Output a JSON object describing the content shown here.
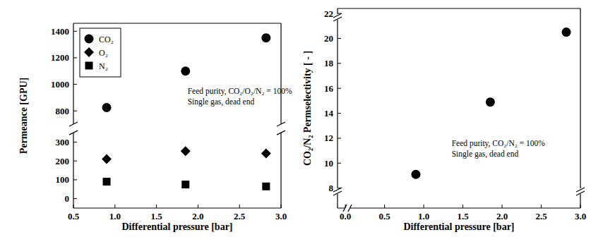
{
  "chart_data": [
    {
      "type": "scatter",
      "x_label": "Differential pressure [bar]",
      "y_label": "Permeance [GPU]",
      "xlim": [
        0.5,
        3.0
      ],
      "xticks": [
        0.5,
        {
          "value": 1,
          "label": "1.0"
        },
        1.5,
        {
          "value": 2,
          "label": "2.0"
        },
        2.5,
        {
          "value": 3,
          "label": "3.0"
        }
      ],
      "ylim": [
        -50,
        1460
      ],
      "yticks": [
        0,
        100,
        200,
        300,
        800,
        1000,
        1200,
        1400
      ],
      "x": [
        0.9,
        1.85,
        2.82
      ],
      "series": [
        {
          "name": "CO₂",
          "color": "#000000",
          "marker": "circle",
          "values": [
            825,
            1100,
            1350
          ]
        },
        {
          "name": "O₂",
          "color": "#000000",
          "marker": "diamond",
          "values": [
            210,
            252,
            240
          ]
        },
        {
          "name": "N₂",
          "color": "#000000",
          "marker": "square",
          "values": [
            90,
            75,
            65
          ]
        }
      ],
      "legend": "top-left",
      "annotations": [
        "Feed purity, CO₂/O₂/N₂ = 100%",
        "Single gas, dead end"
      ]
    },
    {
      "type": "scatter",
      "x_label": "Differential pressure [bar]",
      "y_label": "CO₂/N₂ Permselectivity [ - ]",
      "xlim": [
        -0.1,
        3.0
      ],
      "xticks": [
        {
          "value": 0,
          "label": "0.0"
        },
        0.5,
        {
          "value": 1,
          "label": "1.0"
        },
        1.5,
        {
          "value": 2,
          "label": "2.0"
        },
        2.5,
        {
          "value": 3,
          "label": "3.0"
        }
      ],
      "ylim": [
        6.4,
        22.4
      ],
      "yticks": [
        8,
        10,
        12,
        14,
        16,
        18,
        20,
        22
      ],
      "x": [
        0.9,
        1.85,
        2.82
      ],
      "series": [
        {
          "color": "#000000",
          "marker": "circle",
          "values": [
            9.1,
            14.9,
            20.5
          ]
        }
      ],
      "annotations": [
        "Feed purity, CO₂/N₂ = 100%",
        "Single gas, dead end"
      ]
    }
  ]
}
